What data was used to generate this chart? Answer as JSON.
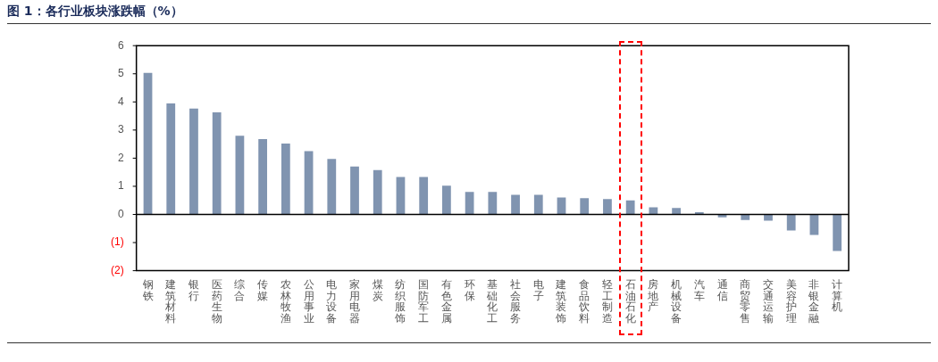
{
  "chart_data": {
    "type": "bar",
    "title": "图 1：各行业板块涨跌幅（%）",
    "categories": [
      "钢铁",
      "建筑材料",
      "银行",
      "医药生物",
      "综合",
      "传媒",
      "农林牧渔",
      "公用事业",
      "电力设备",
      "家用电器",
      "煤炭",
      "纺织服饰",
      "国防军工",
      "有色金属",
      "环保",
      "基础化工",
      "社会服务",
      "电子",
      "建筑装饰",
      "食品饮料",
      "轻工制造",
      "石油石化",
      "房地产",
      "机械设备",
      "汽车",
      "通信",
      "商贸零售",
      "交通运输",
      "美容护理",
      "非银金融",
      "计算机"
    ],
    "values": [
      5.03,
      3.95,
      3.76,
      3.63,
      2.8,
      2.68,
      2.52,
      2.25,
      1.97,
      1.7,
      1.58,
      1.33,
      1.33,
      1.02,
      0.8,
      0.8,
      0.7,
      0.7,
      0.6,
      0.58,
      0.55,
      0.5,
      0.25,
      0.23,
      0.08,
      -0.1,
      -0.2,
      -0.22,
      -0.57,
      -0.73,
      -1.3
    ],
    "color": "#8094b0",
    "ylim": [
      -2,
      6
    ],
    "yticks": [
      {
        "value": -2,
        "label": "(2)"
      },
      {
        "value": -1,
        "label": "(1)"
      },
      0,
      1,
      2,
      3,
      4,
      5,
      6
    ],
    "legend": false
  }
}
